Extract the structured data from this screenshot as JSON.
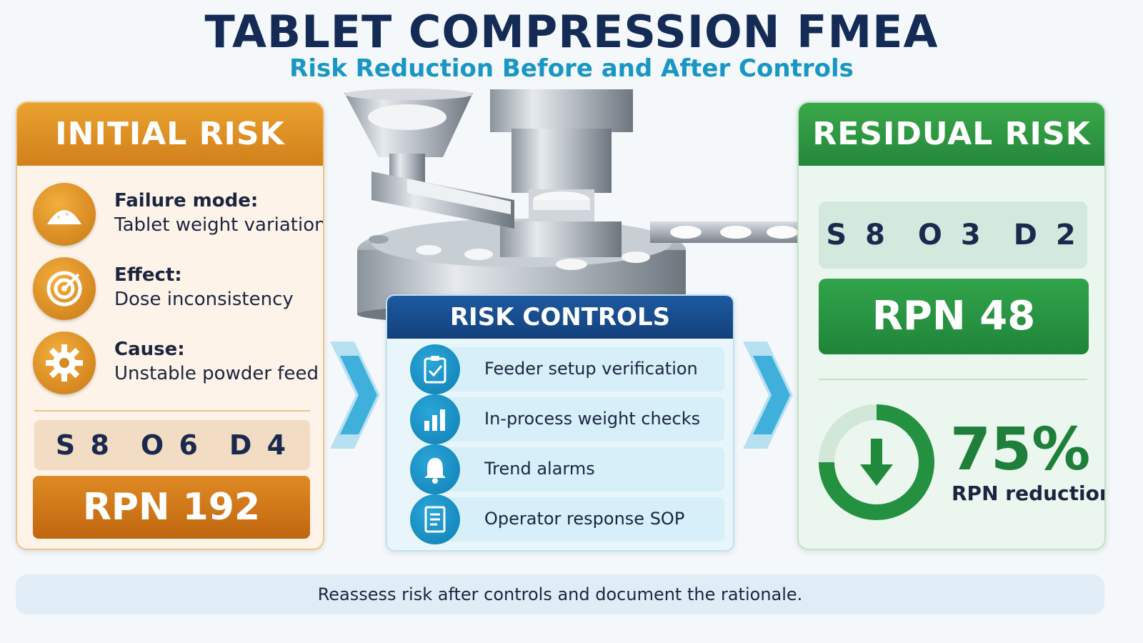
{
  "header": {
    "title": "TABLET COMPRESSION FMEA",
    "subtitle": "Risk Reduction Before and After Controls"
  },
  "initial_risk": {
    "heading": "INITIAL RISK",
    "items": [
      {
        "label": "Failure mode:",
        "value": "Tablet weight variation",
        "icon": "powder-pile-icon"
      },
      {
        "label": "Effect:",
        "value": "Dose inconsistency",
        "icon": "target-icon"
      },
      {
        "label": "Cause:",
        "value": "Unstable powder feed",
        "icon": "gear-icon"
      }
    ],
    "scores": {
      "s": "S 8",
      "o": "O 6",
      "d": "D 4"
    },
    "rpn": "RPN 192",
    "color": "#d9841f"
  },
  "risk_controls": {
    "heading": "RISK CONTROLS",
    "items": [
      {
        "text": "Feeder setup verification",
        "icon": "clipboard-check-icon"
      },
      {
        "text": "In-process weight checks",
        "icon": "bar-chart-icon"
      },
      {
        "text": "Trend alarms",
        "icon": "bell-icon"
      },
      {
        "text": "Operator response SOP",
        "icon": "document-icon"
      }
    ],
    "color": "#1a4f92"
  },
  "residual_risk": {
    "heading": "RESIDUAL RISK",
    "scores": {
      "s": "S 8",
      "o": "O 3",
      "d": "D 2"
    },
    "rpn": "RPN 48",
    "reduction_percent": "75%",
    "reduction_fraction": 0.75,
    "reduction_label": "RPN reduction",
    "color": "#2d9a44"
  },
  "footer": {
    "note": "Reassess risk after controls and document the rationale."
  }
}
